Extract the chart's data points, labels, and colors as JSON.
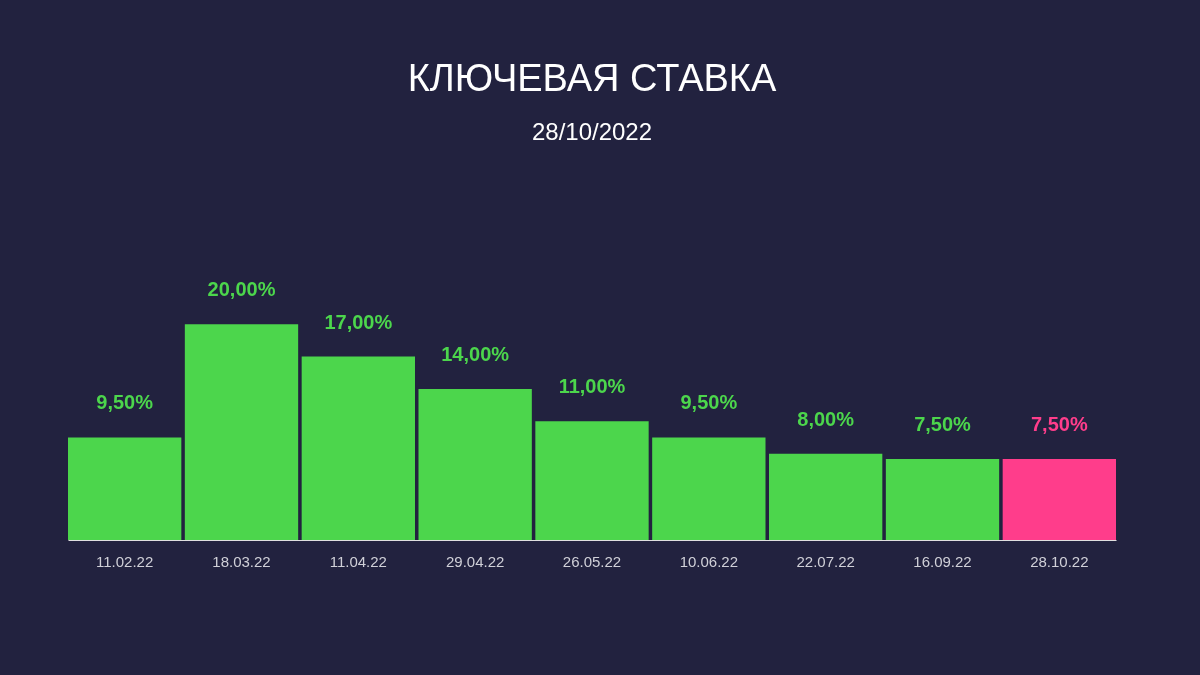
{
  "chart_data": {
    "type": "bar",
    "title": "КЛЮЧЕВАЯ СТАВКА",
    "subtitle": "28/10/2022",
    "categories": [
      "11.02.22",
      "18.03.22",
      "11.04.22",
      "29.04.22",
      "26.05.22",
      "10.06.22",
      "22.07.22",
      "16.09.22",
      "28.10.22"
    ],
    "values": [
      9.5,
      20,
      17,
      14,
      11,
      9.5,
      8,
      7.5,
      7.5
    ],
    "colors": [
      "#4cd64c",
      "#4cd64c",
      "#4cd64c",
      "#4cd64c",
      "#4cd64c",
      "#4cd64c",
      "#4cd64c",
      "#4cd64c",
      "#ff3d8b"
    ],
    "value_labels": [
      "9,50%",
      "20,00%",
      "17,00%",
      "14,00%",
      "11,00%",
      "9,50%",
      "8,00%",
      "7,50%",
      "7,50%"
    ]
  }
}
